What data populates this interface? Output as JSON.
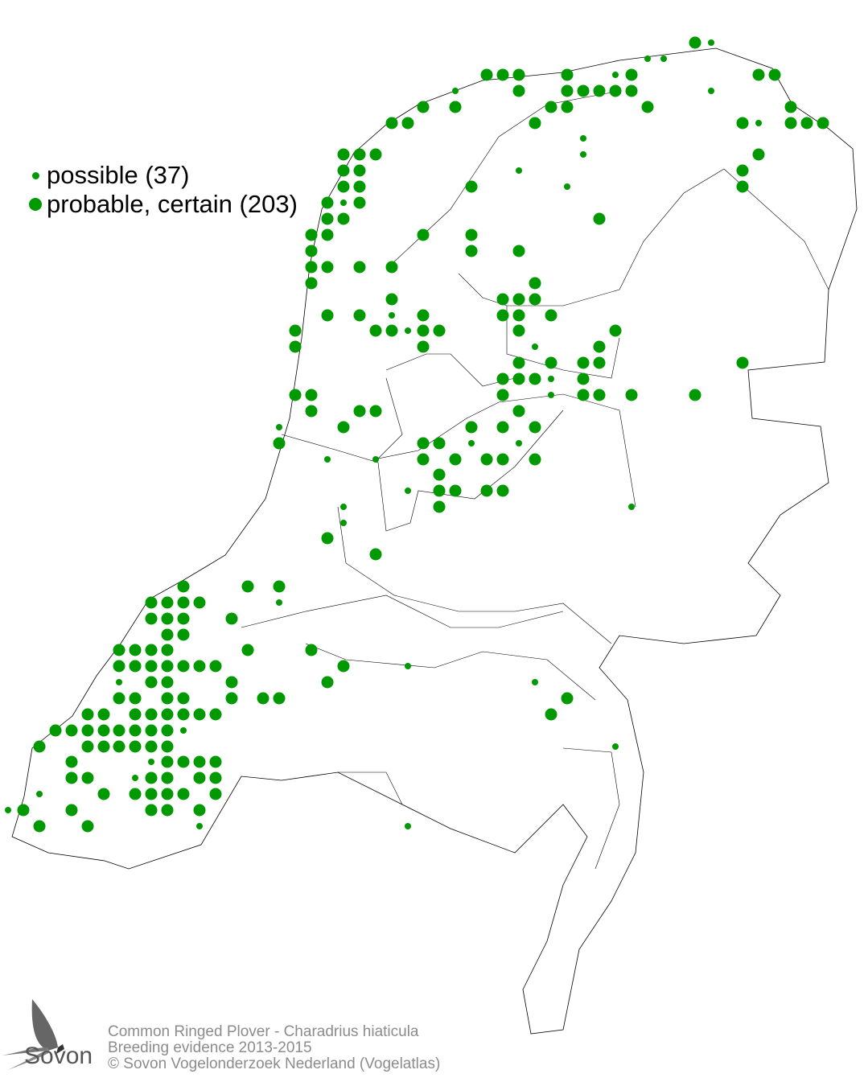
{
  "legend": {
    "items": [
      {
        "label": "possible (37)",
        "symbol": "small-dot"
      },
      {
        "label": "probable, certain (203)",
        "symbol": "large-dot"
      }
    ]
  },
  "colors": {
    "dot": "#009900",
    "outline": "#000000",
    "footer_text": "#8c8c8c"
  },
  "footer": {
    "title": "Common Ringed Plover - Charadrius hiaticula",
    "subtitle": "Breeding evidence 2013-2015",
    "copyright": "© Sovon Vogelonderzoek Nederland (Vogelatlas)"
  },
  "logo": {
    "text": "Sovon"
  }
}
